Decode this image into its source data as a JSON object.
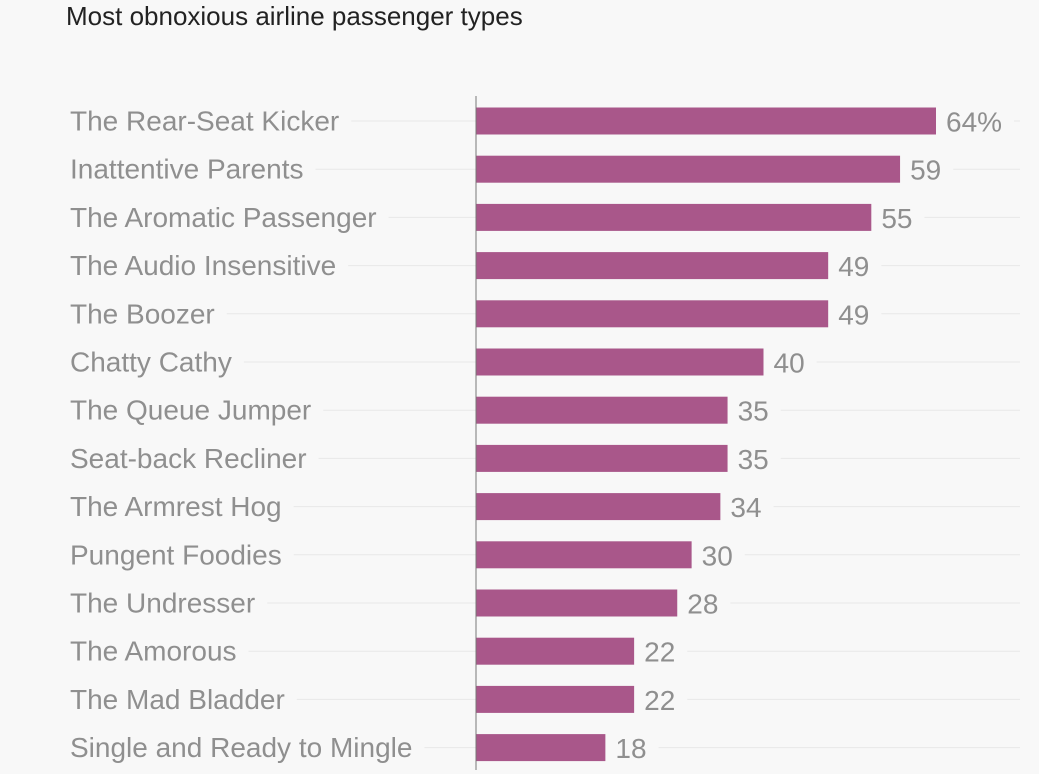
{
  "chart_data": {
    "type": "bar",
    "orientation": "horizontal",
    "title": "Most obnoxious airline passenger types",
    "xlabel": "",
    "ylabel": "",
    "unit_suffix": "%",
    "xlim": [
      0,
      64
    ],
    "categories": [
      "The Rear-Seat Kicker",
      "Inattentive Parents",
      "The Aromatic Passenger",
      "The Audio Insensitive",
      "The Boozer",
      "Chatty Cathy",
      "The Queue Jumper",
      "Seat-back Recliner",
      "The Armrest Hog",
      "Pungent Foodies",
      "The Undresser",
      "The Amorous",
      "The Mad Bladder",
      "Single and Ready to Mingle"
    ],
    "values": [
      64,
      59,
      55,
      49,
      49,
      40,
      35,
      35,
      34,
      30,
      28,
      22,
      22,
      18
    ],
    "value_labels": [
      "64%",
      "59",
      "55",
      "49",
      "49",
      "40",
      "35",
      "35",
      "34",
      "30",
      "28",
      "22",
      "22",
      "18"
    ],
    "bar_color": "#a9578a"
  }
}
